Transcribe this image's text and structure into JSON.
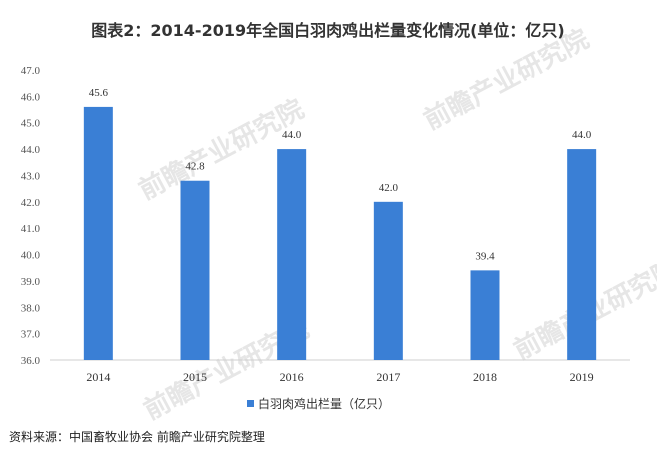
{
  "chart_data": {
    "type": "bar",
    "title": "图表2：2014-2019年全国白羽肉鸡出栏量变化情况(单位：亿只)",
    "categories": [
      "2014",
      "2015",
      "2016",
      "2017",
      "2018",
      "2019"
    ],
    "series": [
      {
        "name": "白羽肉鸡出栏量（亿只）",
        "values": [
          45.6,
          42.8,
          44.0,
          42.0,
          39.4,
          44.0
        ]
      }
    ],
    "data_labels": [
      "45.6",
      "42.8",
      "44.0",
      "42.0",
      "39.4",
      "44.0"
    ],
    "ylim": [
      36.0,
      47.0
    ],
    "yticks": [
      "36.0",
      "37.0",
      "38.0",
      "39.0",
      "40.0",
      "41.0",
      "42.0",
      "43.0",
      "44.0",
      "45.0",
      "46.0",
      "47.0"
    ],
    "grid": false,
    "legend_position": "bottom-center",
    "bar_color": "#3a7fd5"
  },
  "source": "资料来源：中国畜牧业协会 前瞻产业研究院整理",
  "watermark": "前瞻产业研究院"
}
